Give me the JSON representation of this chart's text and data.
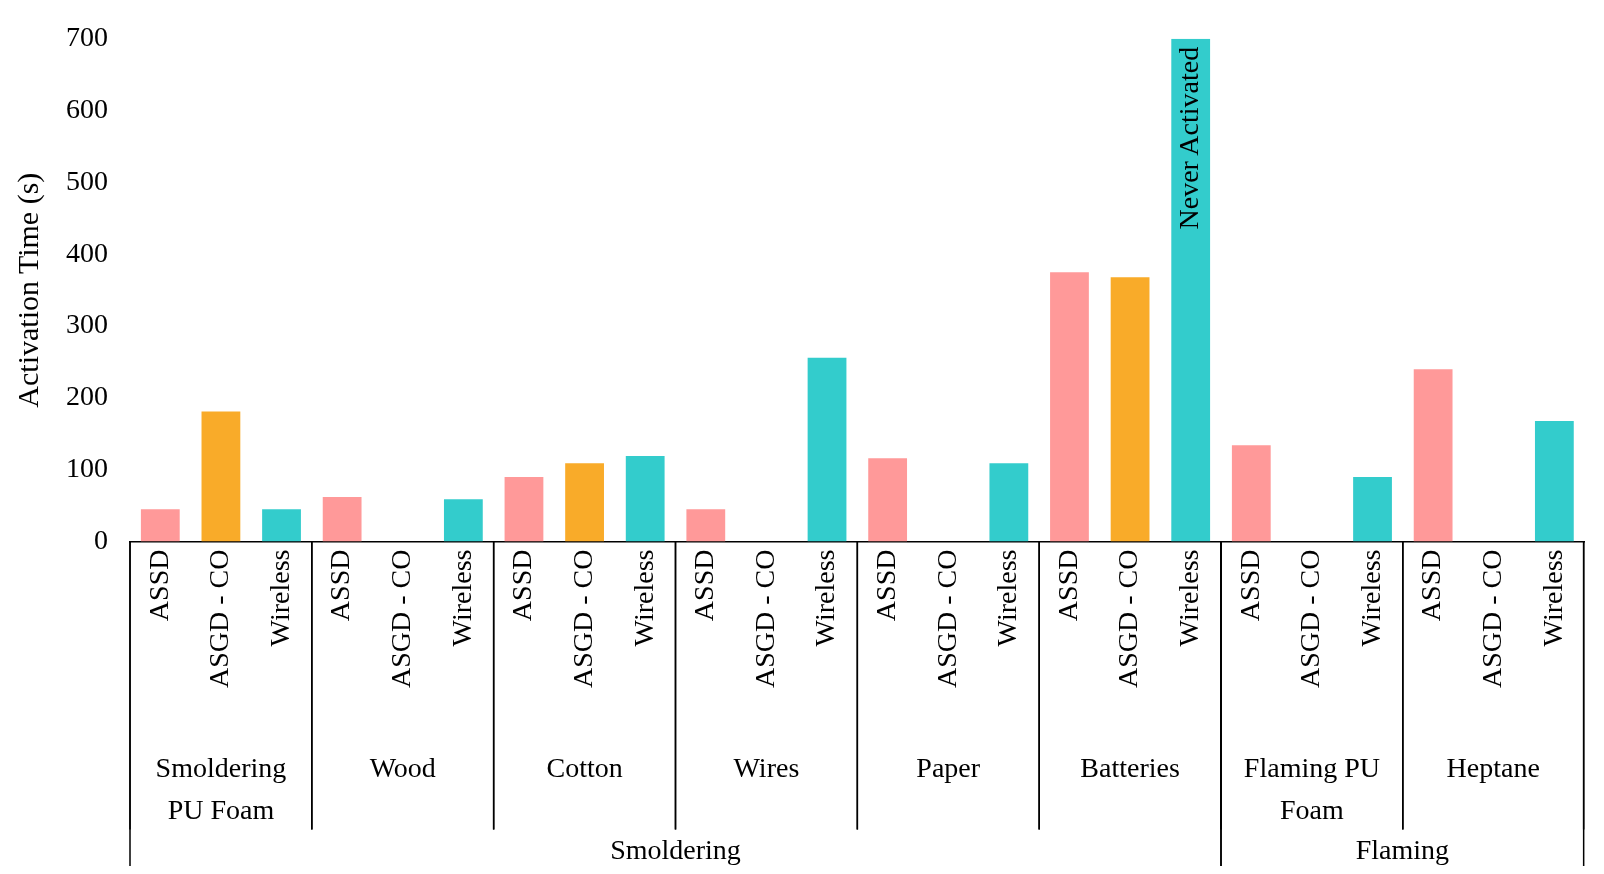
{
  "chart_data": {
    "type": "bar",
    "ylabel": "Activation Time (s)",
    "categories": [
      "ASSD",
      "ASGD - CO",
      "Wireless",
      "ASSD",
      "ASGD - CO",
      "Wireless",
      "ASSD",
      "ASGD - CO",
      "Wireless",
      "ASSD",
      "ASGD - CO",
      "Wireless",
      "ASSD",
      "ASGD - CO",
      "Wireless",
      "ASSD",
      "ASGD - CO",
      "Wireless",
      "ASSD",
      "ASGD - CO",
      "Wireless",
      "ASSD",
      "ASGD - CO",
      "Wireless"
    ],
    "values": [
      45,
      181,
      45,
      62,
      null,
      59,
      90,
      109,
      119,
      45,
      null,
      256,
      116,
      null,
      109,
      375,
      368,
      700,
      134,
      null,
      90,
      240,
      null,
      168
    ],
    "colors": [
      "#ff9999",
      "#f9ab29",
      "#33cccc",
      "#ff9999",
      "#f9ab29",
      "#33cccc",
      "#ff9999",
      "#f9ab29",
      "#33cccc",
      "#ff9999",
      "#f9ab29",
      "#33cccc",
      "#ff9999",
      "#f9ab29",
      "#33cccc",
      "#ff9999",
      "#f9ab29",
      "#33cccc",
      "#ff9999",
      "#f9ab29",
      "#33cccc",
      "#ff9999",
      "#f9ab29",
      "#33cccc"
    ],
    "value_labels": [
      null,
      null,
      null,
      null,
      null,
      null,
      null,
      null,
      null,
      null,
      null,
      null,
      null,
      null,
      null,
      null,
      null,
      "Never Activated",
      null,
      null,
      null,
      null,
      null,
      null
    ],
    "ylim": [
      0,
      700
    ],
    "yticks": [
      0,
      100,
      200,
      300,
      400,
      500,
      600,
      700
    ],
    "annotations": [
      "Smoldering PU Foam",
      "Wood",
      "Cotton",
      "Wires",
      "Paper",
      "Batteries",
      "Flaming PU Foam",
      "Heptane",
      "Smoldering",
      "Flaming"
    ]
  }
}
